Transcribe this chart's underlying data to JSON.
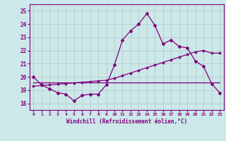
{
  "xlabel": "Windchill (Refroidissement éolien,°C)",
  "x_labels": [
    "0",
    "1",
    "2",
    "3",
    "4",
    "5",
    "6",
    "7",
    "8",
    "9",
    "10",
    "11",
    "12",
    "13",
    "14",
    "15",
    "16",
    "17",
    "18",
    "19",
    "20",
    "21",
    "22",
    "23"
  ],
  "ylim": [
    17.5,
    25.5
  ],
  "yticks": [
    18,
    19,
    20,
    21,
    22,
    23,
    24,
    25
  ],
  "line_color": "#800080",
  "bg_color": "#cce8e8",
  "grid_color": "#b0c8c8",
  "series1_y": [
    20.0,
    19.4,
    19.1,
    18.8,
    18.7,
    18.2,
    18.6,
    18.7,
    18.7,
    19.4,
    20.9,
    22.8,
    23.5,
    24.0,
    24.8,
    23.9,
    22.5,
    22.8,
    22.3,
    22.2,
    21.2,
    20.8,
    19.5,
    18.8
  ],
  "series2_y": [
    19.3,
    19.35,
    19.4,
    19.45,
    19.5,
    19.55,
    19.6,
    19.65,
    19.7,
    19.75,
    19.9,
    20.1,
    20.3,
    20.5,
    20.7,
    20.9,
    21.1,
    21.3,
    21.5,
    21.7,
    21.9,
    22.0,
    21.8,
    21.8
  ],
  "series3_y": [
    19.6,
    19.6,
    19.6,
    19.6,
    19.6,
    19.6,
    19.6,
    19.6,
    19.6,
    19.6,
    19.6,
    19.6,
    19.6,
    19.6,
    19.6,
    19.6,
    19.6,
    19.6,
    19.6,
    19.6,
    19.6,
    19.6,
    19.6,
    19.6
  ]
}
